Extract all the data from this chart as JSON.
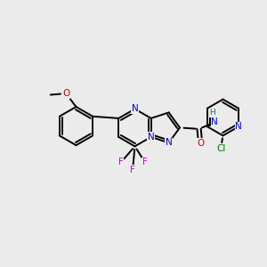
{
  "bg_color": "#ebebeb",
  "bond_color": "#000000",
  "bond_lw": 1.4,
  "N_color": "#0000cc",
  "O_color": "#cc0000",
  "F_color": "#cc00cc",
  "Cl_color": "#007700",
  "H_color": "#007777",
  "font_size": 7.5,
  "fig_w": 3.0,
  "fig_h": 3.0,
  "dpi": 100,
  "xlim": [
    0.0,
    10.0
  ],
  "ylim": [
    2.5,
    8.5
  ]
}
